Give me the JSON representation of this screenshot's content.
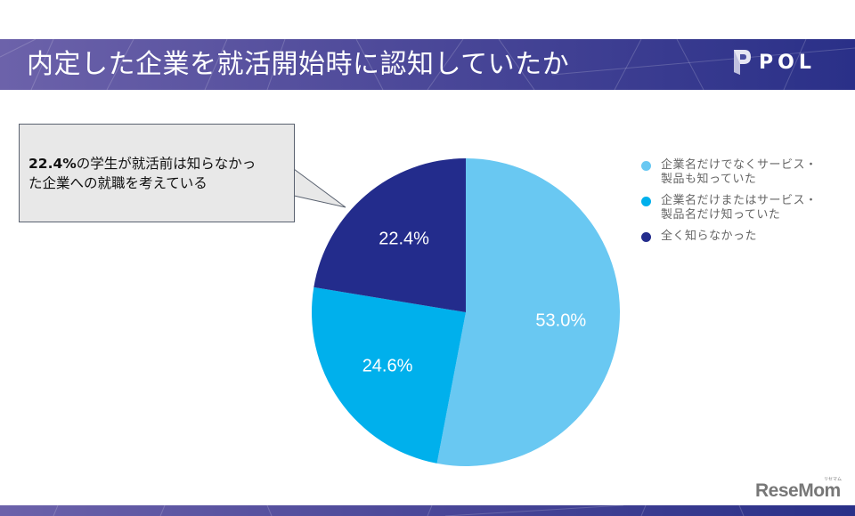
{
  "header": {
    "title": "内定した企業を就活開始時に認知していたか",
    "logo_text": "POL",
    "logo_icon": "pol-p-logo-icon",
    "gradient_start": "#6c62aa",
    "gradient_end": "#2a3088"
  },
  "callout": {
    "highlight": "22.4%",
    "text_line1": "の学生が就活前は知らなかっ",
    "text_line2": "た企業への就職を考えている",
    "background": "#e8e8e8"
  },
  "legend": {
    "items": [
      {
        "label_line1": "企業名だけでなくサービス・",
        "label_line2": "製品も知っていた",
        "color": "#69c8f2"
      },
      {
        "label_line1": "企業名だけまたはサービス・",
        "label_line2": "製品名だけ知っていた",
        "color": "#00b0ec"
      },
      {
        "label_line1": "全く知らなかった",
        "label_line2": "",
        "color": "#232c8c"
      }
    ]
  },
  "pie_labels": {
    "slice0": "53.0%",
    "slice1": "24.6%",
    "slice2": "22.4%"
  },
  "footer": {
    "brand": "ReseMom",
    "brand_ruby": "リセマム"
  },
  "chart_data": {
    "type": "pie",
    "title": "内定した企業を就活開始時に認知していたか",
    "categories": [
      "企業名だけでなくサービス・製品も知っていた",
      "企業名だけまたはサービス・製品名だけ知っていた",
      "全く知らなかった"
    ],
    "values": [
      53.0,
      24.6,
      22.4
    ],
    "unit": "%",
    "colors": [
      "#69c8f2",
      "#00b0ec",
      "#232c8c"
    ],
    "start_angle_deg": 0,
    "direction": "clockwise",
    "legend_position": "right",
    "annotation": "22.4%の学生が就活前は知らなかった企業への就職を考えている"
  }
}
